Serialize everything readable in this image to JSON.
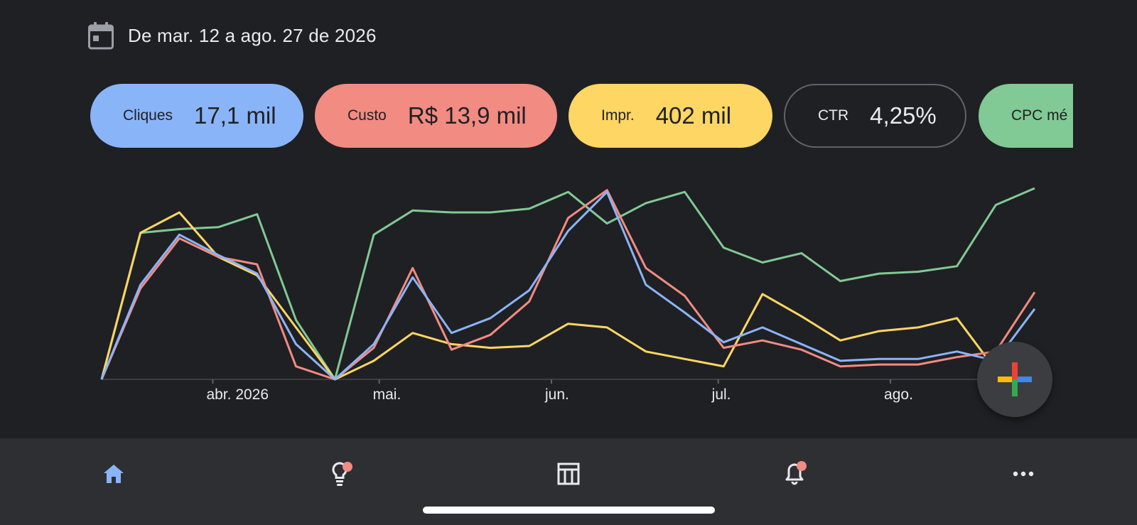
{
  "date_range": {
    "text": "De mar. 12 a ago. 27 de 2026",
    "icon": "calendar-icon"
  },
  "metrics": [
    {
      "id": "cliques",
      "label": "Cliques",
      "value": "17,1 mil",
      "color": "#8ab4f8",
      "selected": true
    },
    {
      "id": "custo",
      "label": "Custo",
      "value": "R$ 13,9 mil",
      "color": "#f28b82",
      "selected": true
    },
    {
      "id": "impr",
      "label": "Impr.",
      "value": "402 mil",
      "color": "#fdd663",
      "selected": true
    },
    {
      "id": "ctr",
      "label": "CTR",
      "value": "4,25%",
      "color": "#5f6368",
      "selected": false
    },
    {
      "id": "cpc",
      "label": "CPC mé",
      "value": "",
      "color": "#81c995",
      "selected": true
    }
  ],
  "chart_data": {
    "type": "line",
    "x": [
      "2026-03-12",
      "2026-03-19",
      "2026-03-26",
      "2026-04-02",
      "2026-04-09",
      "2026-04-16",
      "2026-04-23",
      "2026-04-30",
      "2026-05-07",
      "2026-05-14",
      "2026-05-21",
      "2026-05-28",
      "2026-06-04",
      "2026-06-11",
      "2026-06-18",
      "2026-06-25",
      "2026-07-02",
      "2026-07-09",
      "2026-07-16",
      "2026-07-23",
      "2026-07-30",
      "2026-08-06",
      "2026-08-13",
      "2026-08-20",
      "2026-08-27"
    ],
    "x_tick_labels": [
      "abr. 2026",
      "mai.",
      "jun.",
      "jul.",
      "ago."
    ],
    "y_axis_labels_shown": false,
    "series": [
      {
        "color": "#81c995",
        "values": [
          0,
          79,
          81,
          82,
          89,
          32,
          0,
          78,
          91,
          90,
          90,
          92,
          101,
          84,
          95,
          101,
          71,
          63,
          68,
          53,
          57,
          58,
          61,
          94,
          103
        ]
      },
      {
        "color": "#fdd663",
        "values": [
          0,
          79,
          90,
          66,
          56,
          28,
          0,
          10,
          25,
          19,
          17,
          18,
          30,
          28,
          15,
          11,
          7,
          46,
          34,
          21,
          26,
          28,
          33,
          5,
          6
        ]
      },
      {
        "color": "#f28b82",
        "values": [
          0,
          49,
          76,
          66,
          62,
          7,
          0,
          17,
          60,
          16,
          24,
          42,
          87,
          102,
          60,
          45,
          17,
          21,
          16,
          7,
          8,
          8,
          12,
          15,
          47
        ]
      },
      {
        "color": "#8ab4f8",
        "values": [
          0,
          51,
          78,
          67,
          57,
          19,
          0,
          19,
          55,
          25,
          33,
          48,
          80,
          101,
          51,
          36,
          20,
          28,
          19,
          10,
          11,
          11,
          15,
          10,
          38
        ]
      }
    ]
  },
  "fab": {
    "label": "add",
    "icon": "plus-icon"
  },
  "bottom_nav": [
    {
      "id": "home",
      "icon": "home-icon",
      "active": true,
      "badge": false
    },
    {
      "id": "insights",
      "icon": "lightbulb-icon",
      "active": false,
      "badge": true
    },
    {
      "id": "reports",
      "icon": "table-icon",
      "active": false,
      "badge": false
    },
    {
      "id": "alerts",
      "icon": "bell-icon",
      "active": false,
      "badge": true
    },
    {
      "id": "more",
      "icon": "more-horizontal-icon",
      "active": false,
      "badge": false
    }
  ]
}
